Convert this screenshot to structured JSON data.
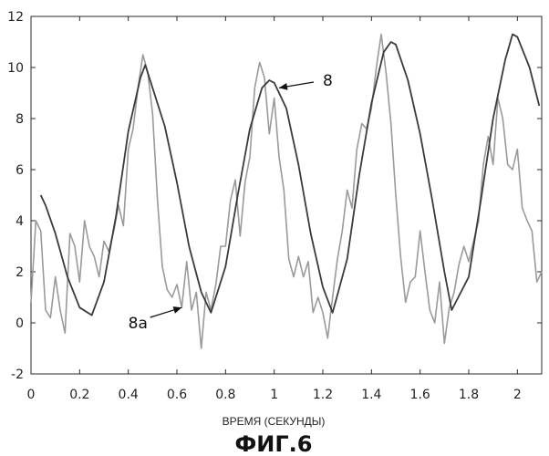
{
  "chart_data": {
    "type": "line",
    "title": "",
    "xlabel": "ВРЕМЯ (СЕКУНДЫ)",
    "ylabel": "",
    "xlim": [
      0,
      2.1
    ],
    "ylim": [
      -2,
      12
    ],
    "xticks": [
      0,
      0.2,
      0.4,
      0.6,
      0.8,
      1,
      1.2,
      1.4,
      1.6,
      1.8,
      2
    ],
    "xtick_labels": [
      "0",
      "0.2",
      "0.4",
      "0.6",
      "0.8",
      "1",
      "1.2",
      "1.4",
      "1.6",
      "1.8",
      "2"
    ],
    "yticks": [
      -2,
      0,
      2,
      4,
      6,
      8,
      10,
      12
    ],
    "ytick_labels": [
      "-2",
      "0",
      "2",
      "4",
      "6",
      "8",
      "10",
      "12"
    ],
    "grid": false,
    "series": [
      {
        "name": "8",
        "color": "#3a3a3a",
        "x": [
          0.04,
          0.06,
          0.1,
          0.15,
          0.2,
          0.25,
          0.3,
          0.35,
          0.4,
          0.45,
          0.47,
          0.5,
          0.55,
          0.6,
          0.65,
          0.7,
          0.74,
          0.8,
          0.85,
          0.9,
          0.95,
          0.98,
          1.0,
          1.05,
          1.1,
          1.15,
          1.2,
          1.24,
          1.3,
          1.35,
          1.4,
          1.45,
          1.48,
          1.5,
          1.55,
          1.6,
          1.65,
          1.7,
          1.73,
          1.8,
          1.85,
          1.9,
          1.95,
          1.98,
          2.0,
          2.05,
          2.09
        ],
        "y": [
          5.0,
          4.6,
          3.5,
          1.8,
          0.6,
          0.3,
          1.6,
          4.2,
          7.5,
          9.6,
          10.1,
          9.2,
          7.7,
          5.5,
          3.0,
          1.2,
          0.4,
          2.2,
          5.0,
          7.6,
          9.2,
          9.5,
          9.4,
          8.4,
          6.2,
          3.5,
          1.4,
          0.4,
          2.5,
          5.8,
          8.6,
          10.6,
          11.0,
          10.9,
          9.5,
          7.4,
          4.8,
          2.0,
          0.5,
          1.8,
          4.8,
          8.0,
          10.3,
          11.3,
          11.2,
          10.0,
          8.5
        ]
      },
      {
        "name": "8a",
        "color": "#9a9a9a",
        "x": [
          0.0,
          0.02,
          0.04,
          0.06,
          0.08,
          0.1,
          0.12,
          0.14,
          0.16,
          0.18,
          0.2,
          0.22,
          0.24,
          0.26,
          0.28,
          0.3,
          0.32,
          0.34,
          0.36,
          0.38,
          0.4,
          0.42,
          0.44,
          0.46,
          0.48,
          0.5,
          0.52,
          0.54,
          0.56,
          0.58,
          0.6,
          0.62,
          0.64,
          0.66,
          0.68,
          0.7,
          0.72,
          0.74,
          0.76,
          0.78,
          0.8,
          0.82,
          0.84,
          0.86,
          0.88,
          0.9,
          0.92,
          0.94,
          0.96,
          0.98,
          1.0,
          1.02,
          1.04,
          1.06,
          1.08,
          1.1,
          1.12,
          1.14,
          1.16,
          1.18,
          1.2,
          1.22,
          1.24,
          1.26,
          1.28,
          1.3,
          1.32,
          1.34,
          1.36,
          1.38,
          1.4,
          1.42,
          1.44,
          1.46,
          1.48,
          1.5,
          1.52,
          1.54,
          1.56,
          1.58,
          1.6,
          1.62,
          1.64,
          1.66,
          1.68,
          1.7,
          1.72,
          1.74,
          1.76,
          1.78,
          1.8,
          1.82,
          1.84,
          1.86,
          1.88,
          1.9,
          1.92,
          1.94,
          1.96,
          1.98,
          2.0,
          2.02,
          2.04,
          2.06,
          2.08,
          2.1
        ],
        "y": [
          0.8,
          4.0,
          3.6,
          0.5,
          0.2,
          1.8,
          0.5,
          -0.4,
          3.5,
          3.0,
          1.6,
          4.0,
          3.0,
          2.6,
          1.8,
          3.2,
          2.8,
          3.6,
          4.6,
          3.8,
          6.8,
          7.6,
          9.2,
          10.5,
          9.8,
          8.2,
          4.8,
          2.2,
          1.3,
          1.0,
          1.5,
          0.6,
          2.4,
          0.5,
          1.2,
          -1.0,
          1.2,
          0.5,
          1.5,
          3.0,
          3.0,
          4.8,
          5.6,
          3.4,
          5.5,
          6.5,
          9.2,
          10.2,
          9.6,
          7.4,
          8.8,
          6.5,
          5.2,
          2.5,
          1.8,
          2.6,
          1.8,
          2.4,
          0.4,
          1.0,
          0.4,
          -0.6,
          1.0,
          2.5,
          3.6,
          5.2,
          4.5,
          6.8,
          7.8,
          7.6,
          8.4,
          10.0,
          11.3,
          9.8,
          7.8,
          5.0,
          2.6,
          0.8,
          1.6,
          1.8,
          3.6,
          2.0,
          0.5,
          0.0,
          1.6,
          -0.8,
          0.6,
          1.2,
          2.3,
          3.0,
          2.4,
          3.2,
          4.0,
          6.2,
          7.3,
          6.2,
          8.8,
          8.0,
          6.2,
          6.0,
          6.8,
          4.5,
          4.0,
          3.6,
          1.6,
          2.0
        ]
      }
    ],
    "annotations": [
      {
        "label": "8",
        "series": "8",
        "x": 1.02,
        "y": 9.2,
        "text_x": 1.2,
        "text_y": 9.5
      },
      {
        "label": "8a",
        "series": "8a",
        "x": 0.62,
        "y": 0.6,
        "text_x": 0.4,
        "text_y": 0.0
      }
    ]
  },
  "figure": {
    "caption": "ФИГ.6"
  }
}
